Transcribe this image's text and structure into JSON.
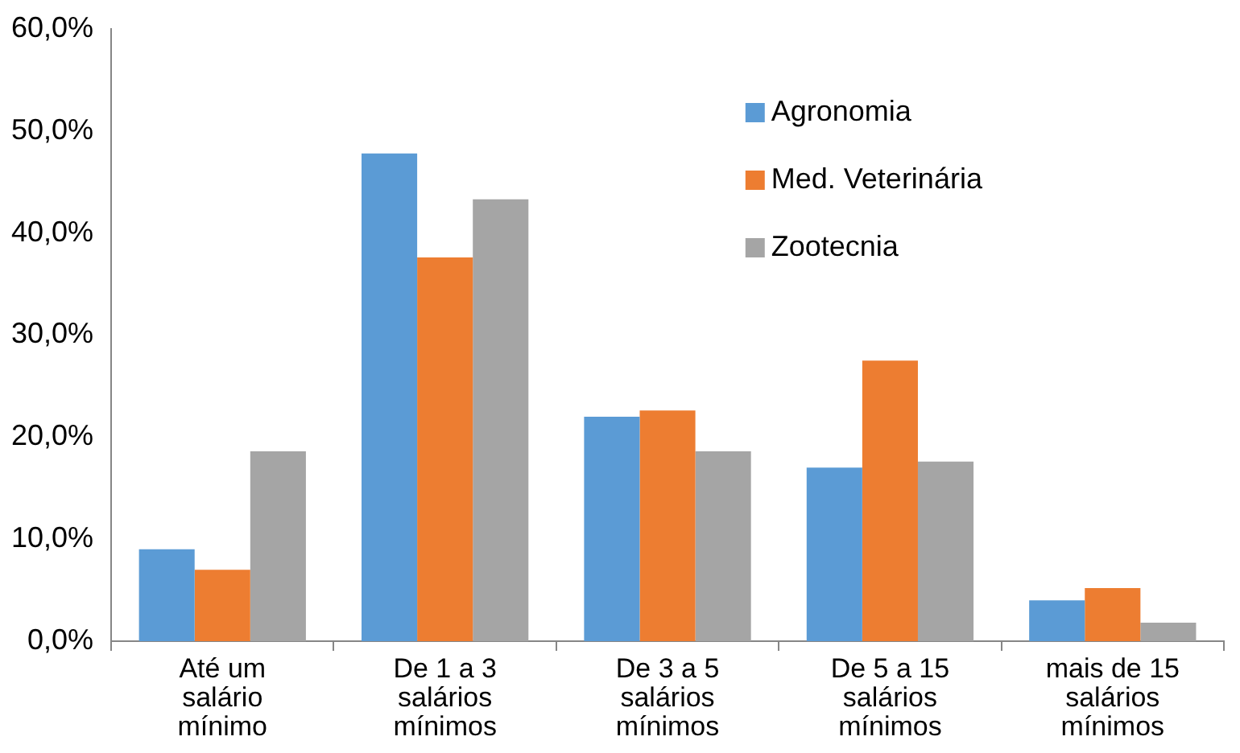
{
  "chart_data": {
    "type": "bar",
    "categories": [
      "Até um salário mínimo",
      "De 1 a 3 salários mínimos",
      "De 3 a 5 salários mínimos",
      "De 5 a 15 salários mínimos",
      "mais de 15 salários mínimos"
    ],
    "series": [
      {
        "name": "Agronomia",
        "color": "#5b9bd5",
        "values": [
          9.0,
          47.8,
          22.0,
          17.0,
          4.0
        ]
      },
      {
        "name": "Med. Veterinária",
        "color": "#ed7d31",
        "values": [
          7.0,
          37.6,
          22.6,
          27.5,
          5.2
        ]
      },
      {
        "name": "Zootecnia",
        "color": "#a5a5a5",
        "values": [
          18.6,
          43.3,
          18.6,
          17.6,
          1.8
        ]
      }
    ],
    "ylim": [
      0,
      60
    ],
    "yticks": [
      {
        "value": 0,
        "label": "0,0%"
      },
      {
        "value": 10,
        "label": "10,0%"
      },
      {
        "value": 20,
        "label": "20,0%"
      },
      {
        "value": 30,
        "label": "30,0%"
      },
      {
        "value": 40,
        "label": "40,0%"
      },
      {
        "value": 50,
        "label": "50,0%"
      },
      {
        "value": 60,
        "label": "60,0%"
      }
    ],
    "grid": false,
    "legend": "top right"
  }
}
